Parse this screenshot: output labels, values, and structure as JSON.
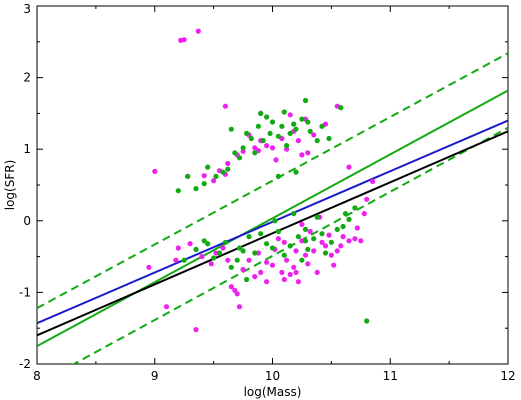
{
  "chart_data": {
    "type": "scatter",
    "xlabel": "log(Mass)",
    "ylabel": "log(SFR)",
    "xlim": [
      8,
      12
    ],
    "ylim": [
      -2,
      3
    ],
    "x_ticks": [
      "8",
      "9",
      "10",
      "11",
      "12"
    ],
    "y_ticks": [
      "-2",
      "-1",
      "0",
      "1",
      "2",
      "3"
    ],
    "grid": false,
    "colors": {
      "magenta": "#ee22ee",
      "green": "#11aa11",
      "blue": "#1a1acc",
      "black": "#000000"
    },
    "series": [
      {
        "color": "magenta",
        "points": [
          [
            9.22,
            2.52
          ],
          [
            9.25,
            2.53
          ],
          [
            9.37,
            2.65
          ],
          [
            9.0,
            0.69
          ],
          [
            9.28,
            0.62
          ],
          [
            9.42,
            0.63
          ],
          [
            9.5,
            0.56
          ],
          [
            9.55,
            0.7
          ],
          [
            9.6,
            0.65
          ],
          [
            9.62,
            0.8
          ],
          [
            9.7,
            0.92
          ],
          [
            9.75,
            0.97
          ],
          [
            9.8,
            1.2
          ],
          [
            9.85,
            1.02
          ],
          [
            9.88,
            0.98
          ],
          [
            9.9,
            1.12
          ],
          [
            9.95,
            1.05
          ],
          [
            10.0,
            1.02
          ],
          [
            10.03,
            0.85
          ],
          [
            10.08,
            1.15
          ],
          [
            10.12,
            1.0
          ],
          [
            10.18,
            1.25
          ],
          [
            10.22,
            1.12
          ],
          [
            10.25,
            0.92
          ],
          [
            10.3,
            0.95
          ],
          [
            10.35,
            1.2
          ],
          [
            10.45,
            1.35
          ],
          [
            10.55,
            1.6
          ],
          [
            10.65,
            0.75
          ],
          [
            10.65,
            -0.28
          ],
          [
            8.95,
            -0.65
          ],
          [
            9.1,
            -1.2
          ],
          [
            9.35,
            -1.52
          ],
          [
            9.18,
            -0.55
          ],
          [
            9.2,
            -0.38
          ],
          [
            9.3,
            -0.32
          ],
          [
            9.4,
            -0.5
          ],
          [
            9.48,
            -0.6
          ],
          [
            9.52,
            -0.45
          ],
          [
            9.58,
            -0.38
          ],
          [
            9.62,
            -0.55
          ],
          [
            9.65,
            -0.92
          ],
          [
            9.68,
            -0.97
          ],
          [
            9.72,
            -1.2
          ],
          [
            9.75,
            -0.68
          ],
          [
            9.8,
            -0.55
          ],
          [
            9.85,
            -0.78
          ],
          [
            9.88,
            -0.45
          ],
          [
            9.9,
            -0.72
          ],
          [
            9.95,
            -0.58
          ],
          [
            10.0,
            -0.62
          ],
          [
            10.02,
            -0.4
          ],
          [
            10.05,
            -0.25
          ],
          [
            10.08,
            -0.72
          ],
          [
            10.1,
            -0.82
          ],
          [
            10.12,
            -0.55
          ],
          [
            10.15,
            -0.75
          ],
          [
            10.18,
            -0.65
          ],
          [
            10.2,
            -0.42
          ],
          [
            10.22,
            -0.85
          ],
          [
            10.25,
            -0.28
          ],
          [
            10.28,
            -0.48
          ],
          [
            10.3,
            -0.6
          ],
          [
            10.32,
            -0.15
          ],
          [
            10.35,
            -0.42
          ],
          [
            10.38,
            -0.72
          ],
          [
            10.42,
            -0.3
          ],
          [
            10.45,
            -0.35
          ],
          [
            10.48,
            -0.2
          ],
          [
            10.5,
            -0.48
          ],
          [
            10.52,
            -0.62
          ],
          [
            10.55,
            -0.42
          ],
          [
            10.58,
            -0.35
          ],
          [
            10.6,
            -0.22
          ],
          [
            10.7,
            -0.25
          ],
          [
            10.72,
            -0.1
          ],
          [
            10.75,
            -0.28
          ],
          [
            10.78,
            0.1
          ],
          [
            10.8,
            0.3
          ],
          [
            10.85,
            0.55
          ],
          [
            10.1,
            -0.3
          ],
          [
            10.25,
            -0.05
          ],
          [
            10.4,
            0.05
          ],
          [
            9.6,
            1.6
          ],
          [
            9.9,
            1.5
          ],
          [
            10.15,
            1.48
          ],
          [
            10.28,
            1.42
          ],
          [
            9.7,
            -1.02
          ],
          [
            10.2,
            -0.72
          ],
          [
            9.95,
            -0.85
          ]
        ]
      },
      {
        "color": "green",
        "points": [
          [
            9.2,
            0.42
          ],
          [
            9.28,
            0.62
          ],
          [
            9.35,
            0.45
          ],
          [
            9.42,
            0.52
          ],
          [
            9.45,
            0.75
          ],
          [
            9.52,
            0.62
          ],
          [
            9.58,
            0.68
          ],
          [
            9.62,
            0.72
          ],
          [
            9.68,
            0.95
          ],
          [
            9.72,
            0.88
          ],
          [
            9.75,
            1.02
          ],
          [
            9.78,
            1.22
          ],
          [
            9.82,
            1.15
          ],
          [
            9.85,
            0.95
          ],
          [
            9.88,
            1.32
          ],
          [
            9.9,
            1.5
          ],
          [
            9.92,
            1.12
          ],
          [
            9.95,
            1.45
          ],
          [
            9.98,
            1.22
          ],
          [
            10.0,
            1.38
          ],
          [
            10.05,
            1.18
          ],
          [
            10.08,
            1.32
          ],
          [
            10.1,
            1.52
          ],
          [
            10.12,
            1.05
          ],
          [
            10.15,
            1.22
          ],
          [
            10.18,
            1.35
          ],
          [
            10.2,
            1.28
          ],
          [
            10.25,
            1.42
          ],
          [
            10.28,
            1.68
          ],
          [
            10.3,
            1.38
          ],
          [
            10.32,
            1.25
          ],
          [
            10.38,
            1.12
          ],
          [
            10.42,
            1.32
          ],
          [
            10.48,
            1.15
          ],
          [
            10.58,
            1.58
          ],
          [
            9.65,
            1.28
          ],
          [
            10.05,
            0.62
          ],
          [
            10.2,
            0.68
          ],
          [
            9.35,
            -0.4
          ],
          [
            9.42,
            -0.28
          ],
          [
            9.45,
            -0.32
          ],
          [
            9.5,
            -0.52
          ],
          [
            9.55,
            -0.45
          ],
          [
            9.6,
            -0.3
          ],
          [
            9.65,
            -0.65
          ],
          [
            9.7,
            -0.55
          ],
          [
            9.72,
            -0.38
          ],
          [
            9.78,
            -0.82
          ],
          [
            9.8,
            -0.22
          ],
          [
            9.85,
            -0.45
          ],
          [
            9.9,
            -0.18
          ],
          [
            9.95,
            -0.32
          ],
          [
            10.0,
            -0.38
          ],
          [
            10.02,
            0.0
          ],
          [
            10.05,
            -0.15
          ],
          [
            10.1,
            -0.48
          ],
          [
            10.15,
            -0.35
          ],
          [
            10.18,
            0.1
          ],
          [
            10.22,
            -0.22
          ],
          [
            10.25,
            -0.55
          ],
          [
            10.28,
            -0.12
          ],
          [
            10.3,
            -0.4
          ],
          [
            10.35,
            -0.25
          ],
          [
            10.38,
            0.05
          ],
          [
            10.42,
            -0.18
          ],
          [
            10.45,
            -0.45
          ],
          [
            10.5,
            -0.3
          ],
          [
            10.55,
            -0.12
          ],
          [
            10.6,
            -0.08
          ],
          [
            10.62,
            0.1
          ],
          [
            10.65,
            0.02
          ],
          [
            10.7,
            0.18
          ],
          [
            10.8,
            -1.4
          ],
          [
            10.28,
            -0.28
          ],
          [
            9.25,
            -0.55
          ],
          [
            9.75,
            -0.42
          ]
        ]
      }
    ],
    "lines": [
      {
        "color": "green",
        "style": "solid",
        "x": [
          8,
          12
        ],
        "y": [
          -1.75,
          1.82
        ]
      },
      {
        "color": "green",
        "style": "dashed",
        "x": [
          8,
          12
        ],
        "y": [
          -1.22,
          2.34
        ]
      },
      {
        "color": "green",
        "style": "dashed",
        "x": [
          8,
          12
        ],
        "y": [
          -2.28,
          1.3
        ]
      },
      {
        "color": "blue",
        "style": "solid",
        "x": [
          8,
          12
        ],
        "y": [
          -1.43,
          1.4
        ]
      },
      {
        "color": "black",
        "style": "solid",
        "x": [
          8,
          12
        ],
        "y": [
          -1.6,
          1.25
        ]
      }
    ]
  }
}
